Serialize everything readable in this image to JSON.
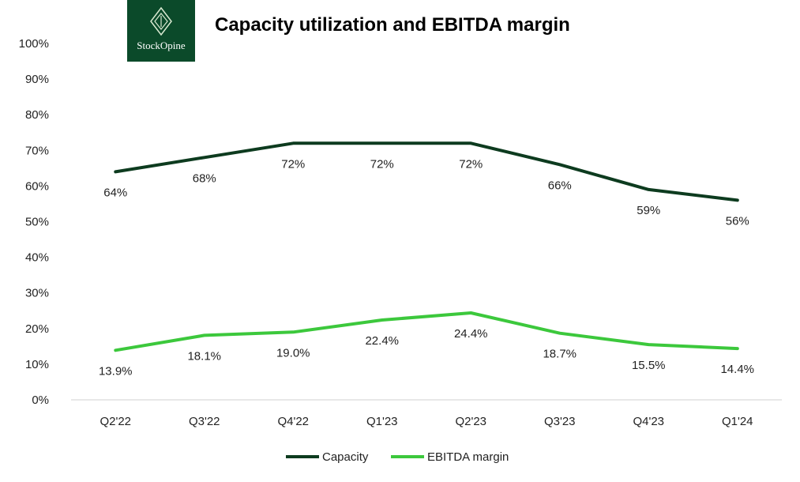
{
  "logo": {
    "text": "StockOpine",
    "color": "#0b4a2a"
  },
  "chart_data": {
    "type": "line",
    "title": "Capacity utilization and EBITDA margin",
    "categories": [
      "Q2'22",
      "Q3'22",
      "Q4'22",
      "Q1'23",
      "Q2'23",
      "Q3'23",
      "Q4'23",
      "Q1'24"
    ],
    "y_ticks": [
      "0%",
      "10%",
      "20%",
      "30%",
      "40%",
      "50%",
      "60%",
      "70%",
      "80%",
      "90%",
      "100%"
    ],
    "ylim": [
      0,
      100
    ],
    "grid": false,
    "legend": "bottom",
    "series": [
      {
        "name": "Capacity",
        "color": "#0d3b1f",
        "values": [
          64,
          68,
          72,
          72,
          72,
          66,
          59,
          56
        ],
        "labels": [
          "64%",
          "68%",
          "72%",
          "72%",
          "72%",
          "66%",
          "59%",
          "56%"
        ]
      },
      {
        "name": "EBITDA margin",
        "color": "#3cc83c",
        "values": [
          13.9,
          18.1,
          19.0,
          22.4,
          24.4,
          18.7,
          15.5,
          14.4
        ],
        "labels": [
          "13.9%",
          "18.1%",
          "19.0%",
          "22.4%",
          "24.4%",
          "18.7%",
          "15.5%",
          "14.4%"
        ]
      }
    ]
  }
}
